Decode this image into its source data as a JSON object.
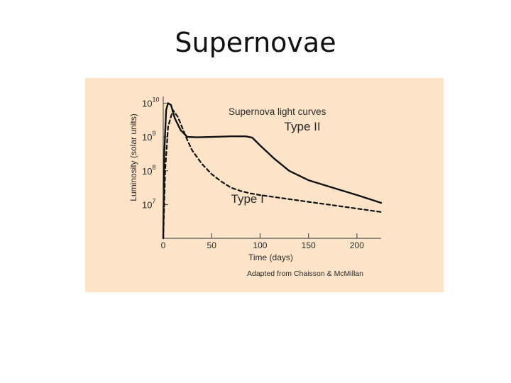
{
  "slide": {
    "title": "Supernovae",
    "panel_color": "#fde3c8"
  },
  "chart_data": {
    "type": "line",
    "title": "Supernova light curves",
    "xlabel": "Time (days)",
    "ylabel": "Luminosity (solar units)",
    "credit": "Adapted from Chaisson & McMillan",
    "xlim": [
      0,
      225
    ],
    "ylim_log10": [
      6.0,
      10.2
    ],
    "y_scale": "log",
    "x_ticks": [
      0,
      50,
      100,
      150,
      200
    ],
    "x_tick_labels": [
      "0",
      "50",
      "100",
      "150",
      "200"
    ],
    "y_ticks_log10": [
      7,
      8,
      9,
      10
    ],
    "y_tick_labels": [
      {
        "base": "10",
        "exp": "7"
      },
      {
        "base": "10",
        "exp": "8"
      },
      {
        "base": "10",
        "exp": "9"
      },
      {
        "base": "10",
        "exp": "10"
      }
    ],
    "series": [
      {
        "name": "Type II",
        "style": "solid",
        "color": "#111111",
        "x": [
          0,
          1,
          3,
          5,
          8,
          12,
          18,
          25,
          35,
          50,
          70,
          85,
          92,
          100,
          115,
          130,
          150,
          175,
          200,
          225
        ],
        "y_log10": [
          6.0,
          8.5,
          9.8,
          10.0,
          9.95,
          9.55,
          9.2,
          9.0,
          8.99,
          9.0,
          9.02,
          9.02,
          8.98,
          8.75,
          8.35,
          8.0,
          7.72,
          7.5,
          7.28,
          7.05
        ]
      },
      {
        "name": "Type I",
        "style": "dashed",
        "color": "#111111",
        "x": [
          0,
          2,
          5,
          10,
          15,
          20,
          25,
          30,
          40,
          50,
          60,
          70,
          80,
          90,
          100,
          125,
          150,
          175,
          200,
          225
        ],
        "y_log10": [
          6.0,
          8.0,
          9.3,
          9.8,
          9.6,
          9.25,
          8.9,
          8.6,
          8.2,
          7.9,
          7.68,
          7.5,
          7.4,
          7.33,
          7.28,
          7.18,
          7.08,
          6.98,
          6.88,
          6.78
        ]
      }
    ]
  }
}
